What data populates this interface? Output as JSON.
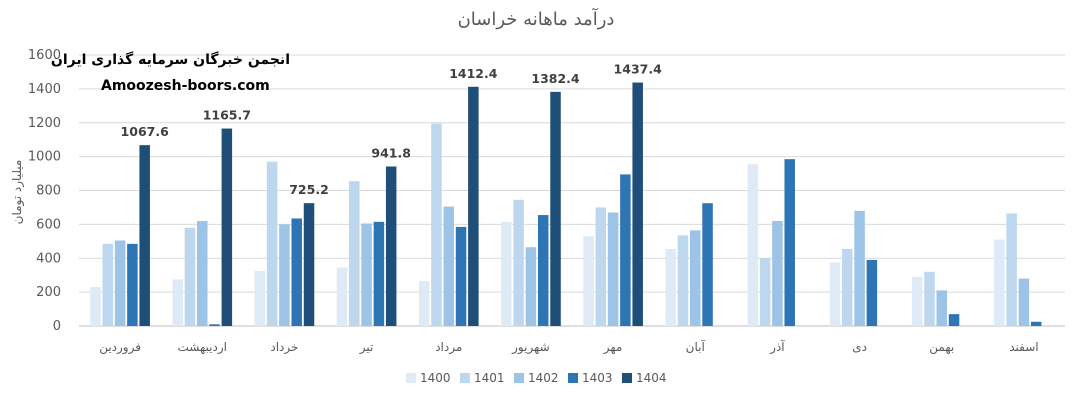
{
  "chart_data": {
    "type": "bar",
    "title": "درآمد ماهانه خراسان",
    "ylabel": "میلیارد تومان",
    "xlabel": "",
    "ylim": [
      0,
      1600
    ],
    "yticks": [
      0,
      200,
      400,
      600,
      800,
      1000,
      1200,
      1400,
      1600
    ],
    "grid": true,
    "legend_position": "bottom",
    "categories": [
      "فروردین",
      "اردیبهشت",
      "خرداد",
      "تیر",
      "مرداد",
      "شهریور",
      "مهر",
      "آبان",
      "آذر",
      "دی",
      "بهمن",
      "اسفند"
    ],
    "series": [
      {
        "name": "1400",
        "color": "#deebf7",
        "values": [
          230,
          275,
          325,
          345,
          265,
          615,
          530,
          455,
          955,
          375,
          290,
          510
        ]
      },
      {
        "name": "1401",
        "color": "#bdd7ee",
        "values": [
          485,
          580,
          970,
          855,
          1195,
          745,
          700,
          535,
          400,
          455,
          320,
          665
        ]
      },
      {
        "name": "1402",
        "color": "#9dc3e6",
        "values": [
          505,
          620,
          600,
          605,
          705,
          465,
          670,
          565,
          620,
          680,
          210,
          280
        ]
      },
      {
        "name": "1403",
        "color": "#2e75b6",
        "values": [
          485,
          10,
          635,
          615,
          585,
          655,
          895,
          725,
          985,
          390,
          70,
          25
        ]
      },
      {
        "name": "1404",
        "color": "#1f4e79",
        "values": [
          1067.6,
          1165.7,
          725.2,
          941.8,
          1412.4,
          1382.4,
          1437.4,
          null,
          null,
          null,
          null,
          null
        ]
      }
    ],
    "data_labels": [
      "1067.6",
      "1165.7",
      "725.2",
      "941.8",
      "1412.4",
      "1382.4",
      "1437.4"
    ]
  },
  "watermark": {
    "title": "انجمن خبرگان سرمایه گذاری ایران",
    "site": "Amoozesh-boors.com"
  }
}
